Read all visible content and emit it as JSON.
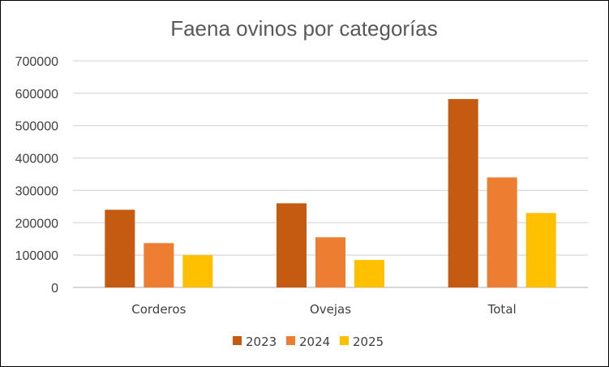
{
  "chart_data": {
    "type": "bar",
    "title": "Faena ovinos por categorías",
    "categories": [
      "Corderos",
      "Ovejas",
      "Total"
    ],
    "series": [
      {
        "name": "2023",
        "color": "#C55A11",
        "values": [
          240000,
          260000,
          582000
        ]
      },
      {
        "name": "2024",
        "color": "#ED7D31",
        "values": [
          137000,
          155000,
          340000
        ]
      },
      {
        "name": "2025",
        "color": "#FFC000",
        "values": [
          100000,
          85000,
          230000
        ]
      }
    ],
    "yticks": [
      "0",
      "100000",
      "200000",
      "300000",
      "400000",
      "500000",
      "600000",
      "700000"
    ],
    "ylim": [
      0,
      700000
    ],
    "grid": true,
    "legend": "bottom"
  }
}
